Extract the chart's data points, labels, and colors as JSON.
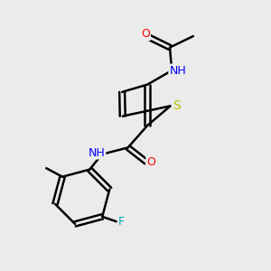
{
  "background_color": "#ebebeb",
  "bond_color": "#000000",
  "bond_width": 1.8,
  "atom_colors": {
    "O": "#ff0000",
    "N": "#0000ff",
    "S": "#bbbb00",
    "F": "#00aaaa",
    "C": "#000000",
    "H": "#000000"
  },
  "font_size": 9,
  "fig_width": 3.0,
  "fig_height": 3.0,
  "dpi": 100,
  "xlim": [
    0,
    10
  ],
  "ylim": [
    0,
    10
  ]
}
